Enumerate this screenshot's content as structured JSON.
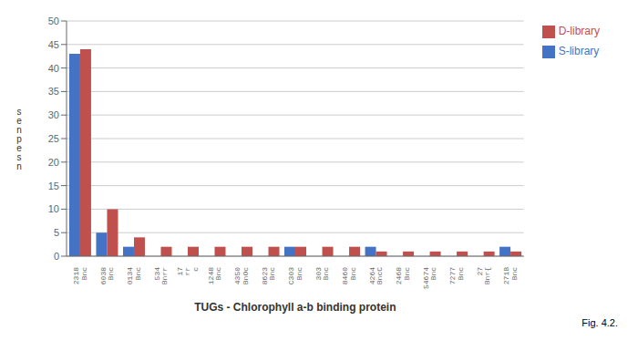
{
  "chart_data": {
    "type": "bar",
    "x_label": "TUGs  -  Chlorophyll a-b binding protein",
    "y_label": "s\ne\nn\np\ne\ns\nn",
    "categories": [
      "2318\nBnc",
      "6038\nBnc",
      "0134\nBnc",
      "534\nBnrr",
      "i7\nrr\nc",
      "i248\nBnc",
      "4350\nBnOc",
      "8623\nBnc",
      "C303\nBnc",
      "303\nBnc",
      "8460\nBnc",
      "4264\nBncC",
      "2468\nBnc",
      "54674\nBnc",
      "7277\nBnc",
      "27\nBnr{",
      "271B\nBnc"
    ],
    "series": [
      {
        "name": "S-library",
        "color": "#4472c4",
        "values": [
          43,
          5,
          2,
          0,
          0,
          0,
          0,
          0,
          2,
          0,
          0,
          2,
          0,
          0,
          0,
          0,
          2
        ]
      },
      {
        "name": "D-library",
        "color": "#c0504d",
        "values": [
          44,
          10,
          4,
          2,
          2,
          2,
          2,
          2,
          2,
          2,
          2,
          1,
          1,
          1,
          1,
          1,
          1
        ]
      }
    ],
    "ylim": [
      0,
      50
    ],
    "yticks": [
      0,
      5,
      10,
      15,
      20,
      25,
      30,
      35,
      40,
      45,
      50
    ],
    "grid": true,
    "legend": "right",
    "annotations": [
      "Fig. 4.2."
    ]
  }
}
